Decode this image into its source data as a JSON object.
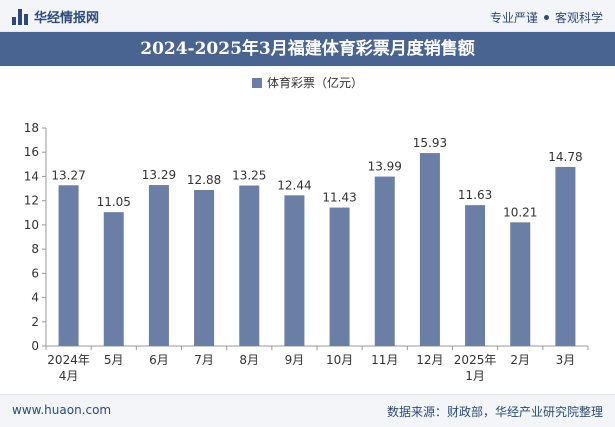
{
  "header": {
    "site_name": "华经情报网",
    "slogan_left": "专业严谨",
    "slogan_right": "客观科学"
  },
  "footer": {
    "url": "www.huaon.com",
    "source": "数据来源：财政部，华经产业研究院整理"
  },
  "colors": {
    "bar": "#6a7ea6",
    "title_bg": "#4a6491",
    "brand": "#2d4a7a"
  },
  "chart_data": {
    "type": "bar",
    "title": "2024-2025年3月福建体育彩票月度销售额",
    "categories": [
      "2024年4月",
      "5月",
      "6月",
      "7月",
      "8月",
      "9月",
      "10月",
      "11月",
      "12月",
      "2025年1月",
      "2月",
      "3月"
    ],
    "series": [
      {
        "name": "体育彩票（亿元）",
        "values": [
          13.27,
          11.05,
          13.29,
          12.88,
          13.25,
          12.44,
          11.43,
          13.99,
          15.93,
          11.63,
          10.21,
          14.78
        ]
      }
    ],
    "ylim": [
      0,
      18
    ],
    "yticks": [
      0,
      2,
      4,
      6,
      8,
      10,
      12,
      14,
      16,
      18
    ],
    "legend_position": "top",
    "grid": false
  }
}
